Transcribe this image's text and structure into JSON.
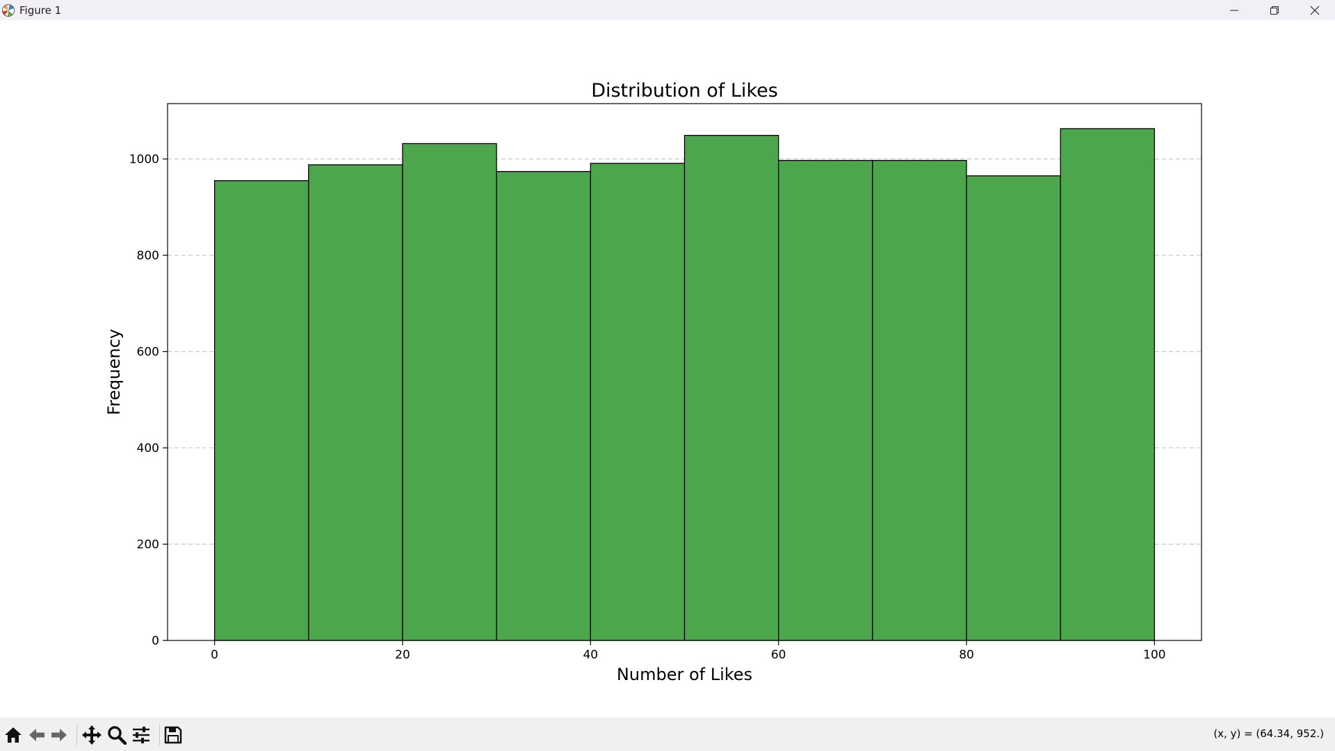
{
  "window": {
    "title": "Figure 1",
    "icons": [
      "matplotlib-icon",
      "minimize-icon",
      "restore-icon",
      "close-icon"
    ]
  },
  "toolbar": {
    "buttons": [
      "home-icon",
      "back-icon",
      "forward-icon",
      "pan-icon",
      "zoom-icon",
      "configure-subplots-icon",
      "save-icon"
    ],
    "coords_text": "(x, y) = (64.34, 952.)"
  },
  "colors": {
    "bar_fill": "#4ca64c",
    "bar_edge": "#000000",
    "grid": "#b0b0b0",
    "titlebar_bg": "#f3f0f5",
    "toolbar_bg": "#f0f0f0"
  },
  "chart_data": {
    "type": "bar",
    "subtype": "histogram",
    "title": "Distribution of Likes",
    "xlabel": "Number of Likes",
    "ylabel": "Frequency",
    "bin_edges": [
      0,
      10,
      20,
      30,
      40,
      50,
      60,
      70,
      80,
      90,
      100
    ],
    "values": [
      955,
      988,
      1032,
      974,
      991,
      1049,
      997,
      997,
      965,
      1063
    ],
    "xlim": [
      -5,
      105
    ],
    "ylim": [
      0,
      1115
    ],
    "xticks": [
      0,
      20,
      40,
      60,
      80,
      100
    ],
    "xtick_labels": [
      "0",
      "20",
      "40",
      "60",
      "80",
      "100"
    ],
    "yticks": [
      0,
      200,
      400,
      600,
      800,
      1000
    ],
    "ytick_labels": [
      "0",
      "200",
      "400",
      "600",
      "800",
      "1000"
    ],
    "grid": {
      "axis": "y",
      "style": "dashed"
    },
    "legend": "none"
  }
}
